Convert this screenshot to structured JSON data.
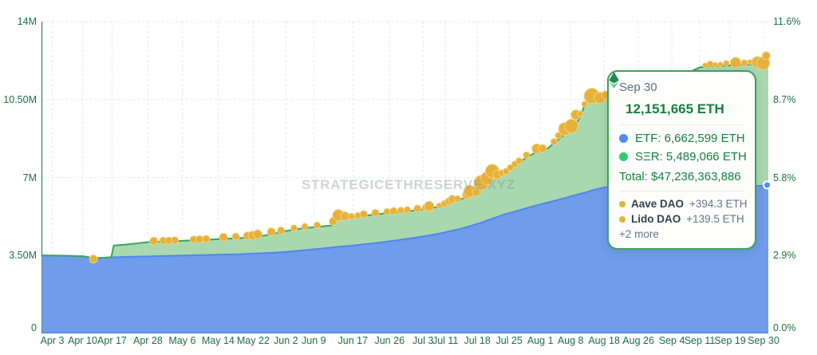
{
  "watermark": "STRATEGICETHRESERVE.XYZ",
  "tooltip": {
    "date": "Sep 30",
    "headline": "12,151,665 ETH",
    "etf_line": "ETF: 6,662,599 ETH",
    "ser_line": "SΞR: 5,489,066 ETH",
    "total_line": "Total: $47,236,363,886",
    "daos": [
      {
        "name": "Aave DAO",
        "delta": "+394.3 ETH"
      },
      {
        "name": "Lido DAO",
        "delta": "+139.5 ETH"
      }
    ],
    "more_label": "+2 more"
  },
  "chart_data": {
    "type": "area",
    "stacked": true,
    "x_tick_labels": [
      "Apr 3",
      "Apr 10",
      "Apr 17",
      "Apr 28",
      "May 6",
      "May 14",
      "May 22",
      "Jun 2",
      "Jun 9",
      "Jun 17",
      "Jun 26",
      "Jul 3",
      "Jul 11",
      "Jul 18",
      "Jul 25",
      "Aug 1",
      "Aug 8",
      "Aug 18",
      "Aug 26",
      "Sep 4",
      "Sep 11",
      "Sep 19",
      "Sep 30"
    ],
    "x_tick_t": [
      0.0143,
      0.056,
      0.0966,
      0.146,
      0.1932,
      0.2426,
      0.2909,
      0.3359,
      0.3743,
      0.4281,
      0.4786,
      0.5247,
      0.5554,
      0.5993,
      0.6432,
      0.6861,
      0.7278,
      0.7739,
      0.8211,
      0.8672,
      0.9056,
      0.9473,
      0.9934
    ],
    "y_left_ticks": {
      "labels": [
        "14M",
        "10.50M",
        "7M",
        "3.50M",
        "0"
      ],
      "values_m": [
        14,
        10.5,
        7,
        3.5,
        0
      ]
    },
    "y_right_ticks": {
      "labels": [
        "11.6%",
        "8.7%",
        "5.8%",
        "2.9%",
        "0.0%"
      ],
      "values_pct": [
        11.6,
        8.7,
        5.8,
        2.9,
        0.0
      ]
    },
    "ylim_m": [
      0,
      14
    ],
    "series": [
      {
        "name": "ETF",
        "fill": "#6f9ceb",
        "line": "#5586e8",
        "latest_eth": 6662599
      },
      {
        "name": "SΞR",
        "fill": "#a9d8ae",
        "line": "#3aa45c",
        "latest_eth": 5489066
      }
    ],
    "total_latest_eth": 12151665,
    "total_latest_usd": 47236363886,
    "samples": {
      "t": [
        0,
        0.031,
        0.058,
        0.071,
        0.086,
        0.0955,
        0.099,
        0.119,
        0.146,
        0.173,
        0.195,
        0.223,
        0.245,
        0.272,
        0.294,
        0.316,
        0.336,
        0.355,
        0.376,
        0.393,
        0.4,
        0.404,
        0.426,
        0.448,
        0.47,
        0.492,
        0.514,
        0.536,
        0.552,
        0.563,
        0.574,
        0.588,
        0.599,
        0.607,
        0.615,
        0.624,
        0.637,
        0.648,
        0.656,
        0.667,
        0.681,
        0.696,
        0.711,
        0.728,
        0.739,
        0.748,
        0.755,
        0.764,
        0.774,
        0.788,
        0.81,
        0.832,
        0.854,
        0.876,
        0.906,
        0.931,
        0.953,
        0.975,
        0.991,
        1
      ],
      "etf_m": [
        3.5,
        3.49,
        3.46,
        3.38,
        3.4,
        3.42,
        3.42,
        3.44,
        3.46,
        3.48,
        3.5,
        3.52,
        3.54,
        3.56,
        3.59,
        3.62,
        3.66,
        3.72,
        3.78,
        3.84,
        3.86,
        3.88,
        3.94,
        4.02,
        4.1,
        4.2,
        4.3,
        4.42,
        4.52,
        4.6,
        4.68,
        4.8,
        4.92,
        5,
        5.1,
        5.2,
        5.35,
        5.45,
        5.52,
        5.62,
        5.75,
        5.88,
        6,
        6.15,
        6.25,
        6.32,
        6.4,
        6.48,
        6.55,
        6.6,
        6.62,
        6.58,
        6.5,
        6.44,
        6.42,
        6.48,
        6.54,
        6.6,
        6.63,
        6.662
      ],
      "total_m": [
        3.5,
        3.49,
        3.46,
        3.38,
        3.4,
        3.42,
        3.95,
        4,
        4.1,
        4.13,
        4.16,
        4.2,
        4.24,
        4.28,
        4.33,
        4.45,
        4.6,
        4.7,
        4.78,
        4.83,
        4.85,
        5.15,
        5.22,
        5.3,
        5.38,
        5.45,
        5.52,
        5.62,
        5.73,
        5.85,
        6,
        6.15,
        6.28,
        6.6,
        6.9,
        7.08,
        7.15,
        7.45,
        7.65,
        7.9,
        8.15,
        8.3,
        8.7,
        9.2,
        9.6,
        10.3,
        10.5,
        10.58,
        10.65,
        10.48,
        10.6,
        10.9,
        11.2,
        11.5,
        11.95,
        12,
        12.05,
        12.08,
        12.12,
        12.151
      ]
    },
    "events": {
      "name": "dao-purchases",
      "fill": "#e6b138",
      "stroke": "#f1d084",
      "points": [
        [
          0.071,
          5,
          1
        ],
        [
          0.154,
          5,
          -1
        ],
        [
          0.167,
          4.5,
          -1
        ],
        [
          0.175,
          4.5,
          -1
        ],
        [
          0.183,
          4.5,
          -1
        ],
        [
          0.209,
          4.5,
          -1
        ],
        [
          0.217,
          4.5,
          -1
        ],
        [
          0.226,
          4.5,
          -1
        ],
        [
          0.25,
          5,
          -2
        ],
        [
          0.267,
          4.5,
          -2
        ],
        [
          0.283,
          5,
          -2
        ],
        [
          0.29,
          5.5,
          -2
        ],
        [
          0.297,
          5.5,
          -3
        ],
        [
          0.316,
          5,
          -3
        ],
        [
          0.329,
          4.5,
          -2
        ],
        [
          0.347,
          4,
          -2
        ],
        [
          0.362,
          4,
          -2
        ],
        [
          0.379,
          4,
          -2
        ],
        [
          0.401,
          5,
          -3
        ],
        [
          0.408,
          7,
          -4
        ],
        [
          0.417,
          5.5,
          -2
        ],
        [
          0.426,
          4,
          -1
        ],
        [
          0.435,
          4,
          -1
        ],
        [
          0.443,
          4.5,
          -2
        ],
        [
          0.459,
          4.5,
          -2
        ],
        [
          0.475,
          4,
          -2
        ],
        [
          0.484,
          4.5,
          -2
        ],
        [
          0.494,
          4,
          -2
        ],
        [
          0.503,
          4,
          -2
        ],
        [
          0.517,
          4.5,
          -2
        ],
        [
          0.528,
          4,
          -2
        ],
        [
          0.533,
          6,
          -3
        ],
        [
          0.547,
          3.5,
          -1
        ],
        [
          0.554,
          4,
          -2
        ],
        [
          0.56,
          4.5,
          -3
        ],
        [
          0.565,
          5,
          -4
        ],
        [
          0.572,
          4,
          -2
        ],
        [
          0.585,
          5.5,
          -3
        ],
        [
          0.589,
          7.5,
          -6
        ],
        [
          0.598,
          5,
          -2
        ],
        [
          0.605,
          9,
          -7
        ],
        [
          0.613,
          8,
          -4
        ],
        [
          0.62,
          8.5,
          -8
        ],
        [
          0.627,
          5.5,
          -1
        ],
        [
          0.633,
          4,
          -2
        ],
        [
          0.639,
          4,
          -2
        ],
        [
          0.645,
          4,
          -2
        ],
        [
          0.651,
          4,
          -2
        ],
        [
          0.657,
          4,
          -2
        ],
        [
          0.667,
          4,
          -3
        ],
        [
          0.681,
          6,
          -4
        ],
        [
          0.689,
          5,
          -2
        ],
        [
          0.705,
          4,
          -2
        ],
        [
          0.711,
          4,
          -5
        ],
        [
          0.72,
          8,
          -6
        ],
        [
          0.729,
          8.5,
          -2
        ],
        [
          0.735,
          6,
          -10
        ],
        [
          0.741,
          3.5,
          -3
        ],
        [
          0.747,
          3.5,
          -2
        ],
        [
          0.757,
          9.5,
          -4
        ],
        [
          0.768,
          7,
          1
        ],
        [
          0.776,
          5,
          -2
        ],
        [
          0.913,
          3,
          -2
        ],
        [
          0.92,
          4,
          -3
        ],
        [
          0.927,
          3,
          -2
        ],
        [
          0.934,
          3,
          -2
        ],
        [
          0.942,
          3.5,
          -3
        ],
        [
          0.955,
          6.5,
          -3
        ],
        [
          0.967,
          4,
          -2
        ],
        [
          0.975,
          3,
          -3
        ],
        [
          0.985,
          7,
          -2
        ],
        [
          0.993,
          8,
          0
        ],
        [
          0.997,
          5,
          -9
        ]
      ]
    },
    "end_marker": {
      "series": "ETF",
      "fill": "#4d8df7",
      "stroke": "#ffffff"
    },
    "style": {
      "grid_color": "#e4e7e9",
      "axis_line_color": "#3d8a5e",
      "axis_text_color": "#1e6e41",
      "bottom_edge_color": "#5b87e0"
    }
  }
}
